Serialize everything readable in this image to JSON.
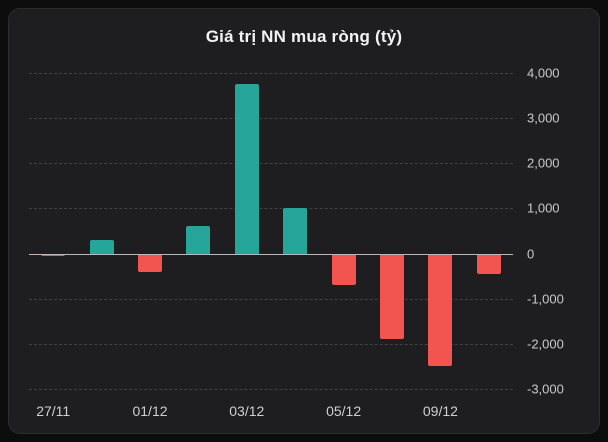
{
  "chart_data": {
    "type": "bar",
    "title": "Giá trị NN mua ròng (tỷ)",
    "xlabel": "",
    "ylabel": "",
    "ylim": [
      -3000,
      4000
    ],
    "y_ticks": [
      4000,
      3000,
      2000,
      1000,
      0,
      -1000,
      -2000,
      -3000
    ],
    "y_tick_labels": [
      "4,000",
      "3,000",
      "2,000",
      "1,000",
      "0",
      "-1,000",
      "-2,000",
      "-3,000"
    ],
    "values": [
      -60,
      300,
      -400,
      600,
      3750,
      1000,
      -700,
      -1900,
      -2500,
      -450
    ],
    "x_tick_labels": [
      {
        "index": 0,
        "label": "27/11"
      },
      {
        "index": 2,
        "label": "01/12"
      },
      {
        "index": 4,
        "label": "03/12"
      },
      {
        "index": 6,
        "label": "05/12"
      },
      {
        "index": 8,
        "label": "09/12"
      }
    ],
    "legend": "none",
    "grid": "horizontal-dashed",
    "colors": {
      "positive": "#26a69a",
      "negative": "#f2544f",
      "panel_background": "#1e1e20",
      "page_background": "#0d0d0e",
      "grid_line": "#414145",
      "zero_line": "#b9b9bc",
      "tick_text": "#c9c9cc",
      "title_text": "#f2f2f4"
    }
  }
}
